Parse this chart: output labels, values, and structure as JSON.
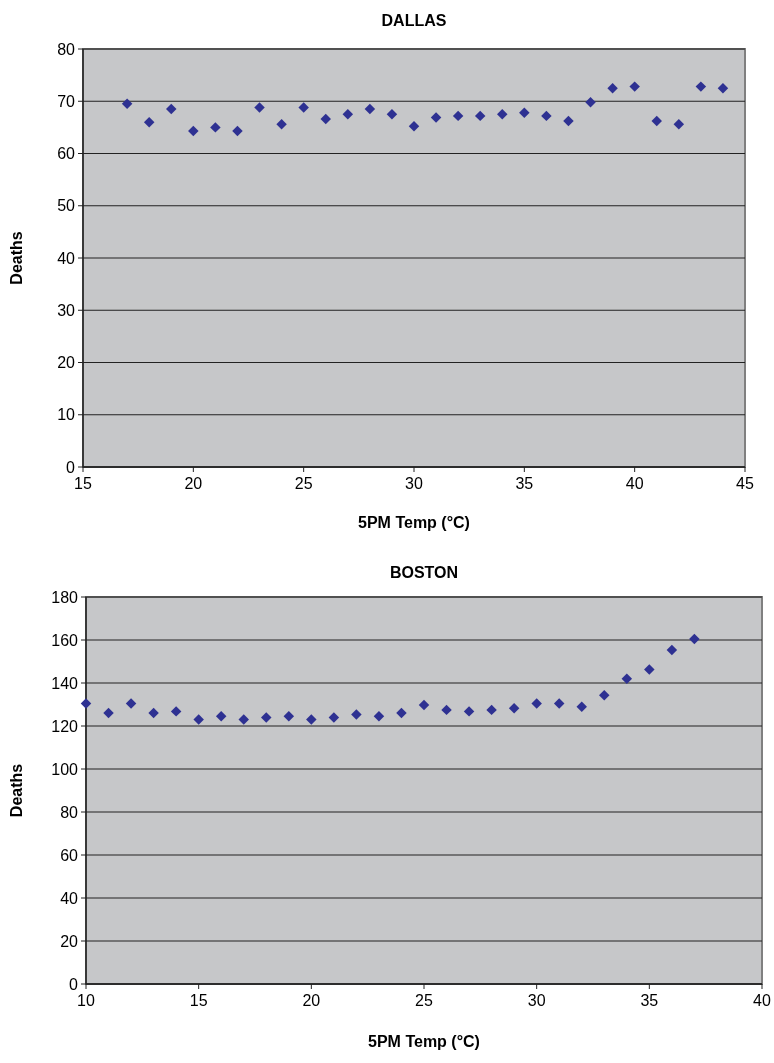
{
  "chart_data": [
    {
      "type": "scatter",
      "title": "DALLAS",
      "xlabel": "5PM Temp (°C)",
      "ylabel": "Deaths",
      "xlim": [
        15,
        45
      ],
      "xticks": [
        15,
        20,
        25,
        30,
        35,
        40,
        45
      ],
      "ylim": [
        0,
        80
      ],
      "yticks": [
        0,
        10,
        20,
        30,
        40,
        50,
        60,
        70,
        80
      ],
      "grid": "y",
      "marker": "diamond",
      "series": [
        {
          "color": "#2e3192",
          "x": [
            17,
            18,
            19,
            20,
            21,
            22,
            23,
            24,
            25,
            26,
            27,
            28,
            29,
            30,
            31,
            32,
            33,
            34,
            35,
            36,
            37,
            38,
            39,
            40,
            41,
            42,
            43,
            44
          ],
          "values": [
            69.5,
            66,
            68.5,
            64.3,
            65,
            64.3,
            68.8,
            65.6,
            68.8,
            66.6,
            67.5,
            68.5,
            67.5,
            65.2,
            66.9,
            67.2,
            67.2,
            67.5,
            67.8,
            67.2,
            66.2,
            69.8,
            72.5,
            72.8,
            66.2,
            65.6,
            72.8,
            72.5
          ]
        }
      ]
    },
    {
      "type": "scatter",
      "title": "BOSTON",
      "xlabel": "5PM Temp (°C)",
      "ylabel": "Deaths",
      "xlim": [
        10,
        40
      ],
      "xticks": [
        10,
        15,
        20,
        25,
        30,
        35,
        40
      ],
      "ylim": [
        0,
        180
      ],
      "yticks": [
        0,
        20,
        40,
        60,
        80,
        100,
        120,
        140,
        160,
        180
      ],
      "grid": "y",
      "marker": "diamond",
      "series": [
        {
          "color": "#2e3192",
          "x": [
            10,
            11,
            12,
            13,
            14,
            15,
            16,
            17,
            18,
            19,
            20,
            21,
            22,
            23,
            24,
            25,
            26,
            27,
            28,
            29,
            30,
            31,
            32,
            33,
            34,
            35,
            36,
            37
          ],
          "values": [
            130.5,
            126,
            130.5,
            126,
            126.8,
            123,
            124.5,
            123,
            124,
            124.5,
            123,
            124,
            125.3,
            124.5,
            126,
            129.8,
            127.5,
            126.8,
            127.5,
            128.3,
            130.5,
            130.5,
            129,
            134.3,
            142,
            146.3,
            155.3,
            160.5
          ]
        }
      ]
    }
  ]
}
